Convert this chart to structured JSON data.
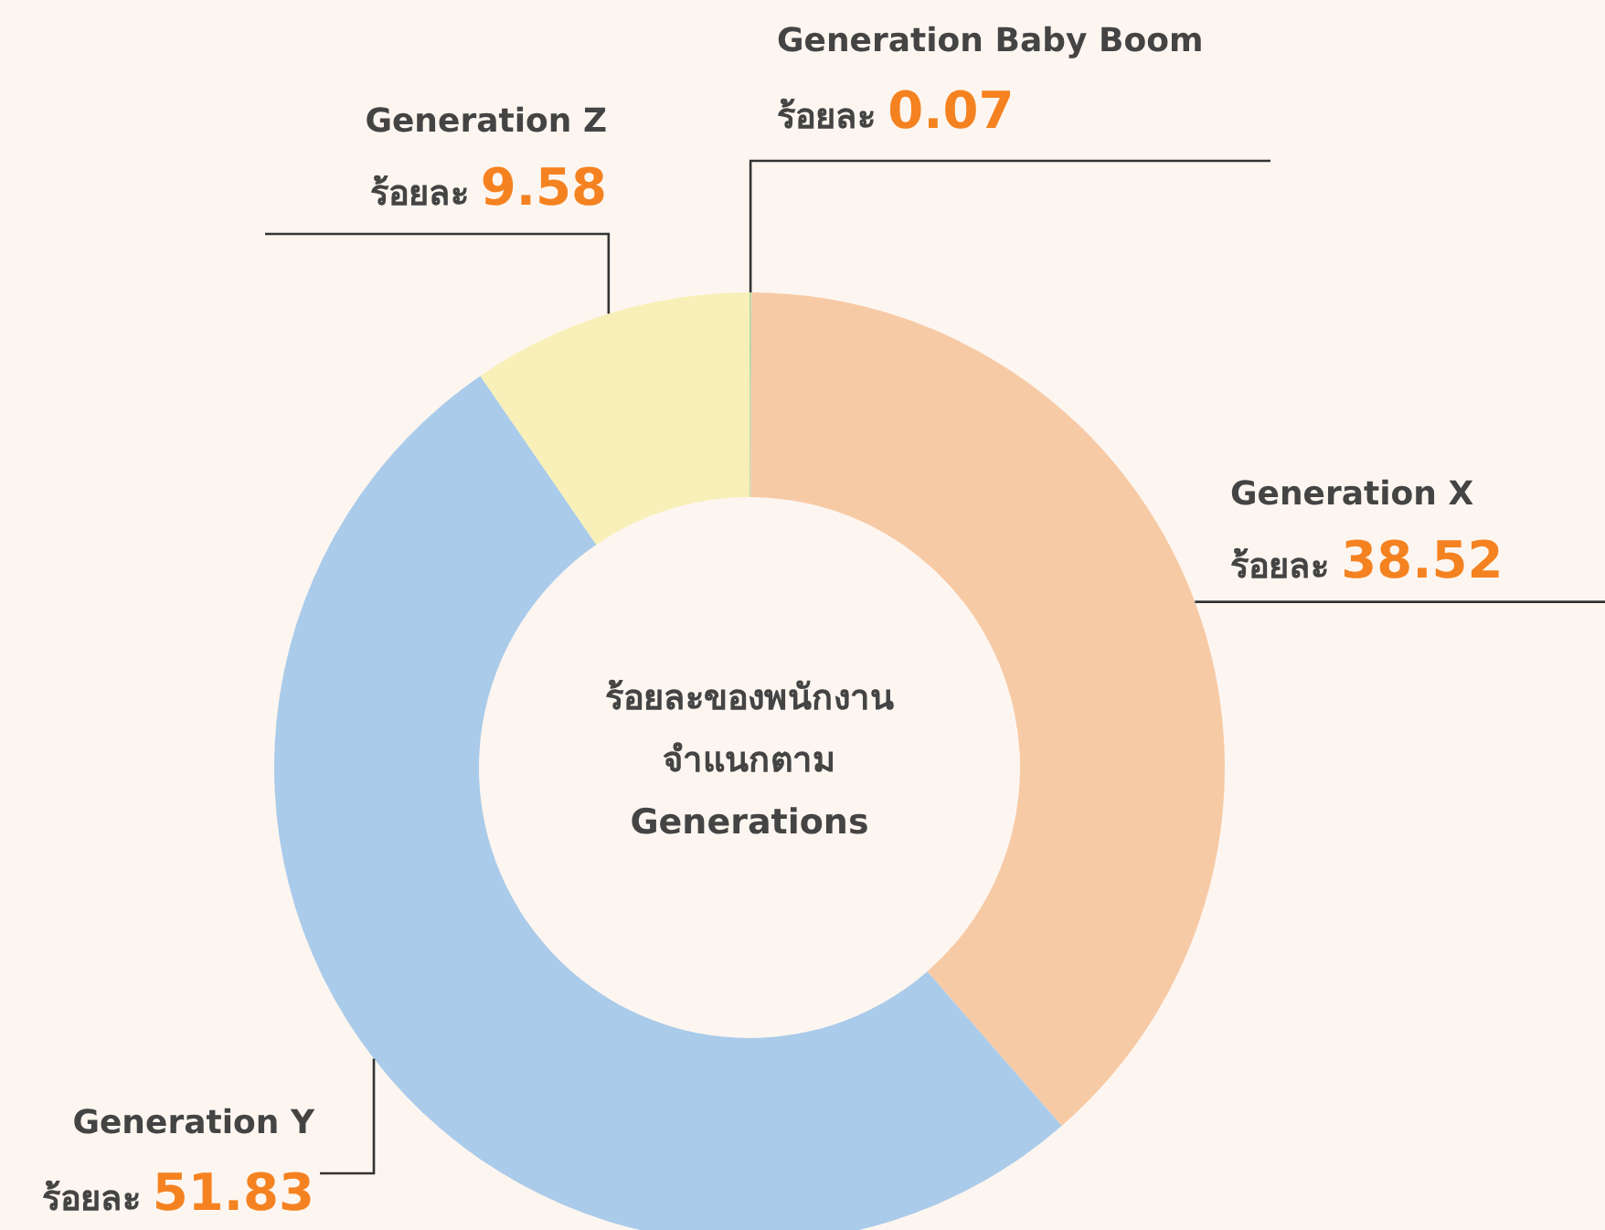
{
  "chart_data": {
    "type": "donut",
    "title": "ร้อยละของพนักงาน จำแนกตาม Generations",
    "categories": [
      "Generation Baby Boom",
      "Generation X",
      "Generation Y",
      "Generation Z"
    ],
    "values": [
      0.07,
      38.52,
      51.83,
      9.58
    ],
    "colors": [
      "#b9d9a6",
      "#f7caa6",
      "#aacbea",
      "#f8f0b8"
    ],
    "value_labels": [
      "ร้อยละ 0.07",
      "ร้อยละ 38.52",
      "ร้อยละ 51.83",
      "ร้อยละ 9.58"
    ]
  }
}
